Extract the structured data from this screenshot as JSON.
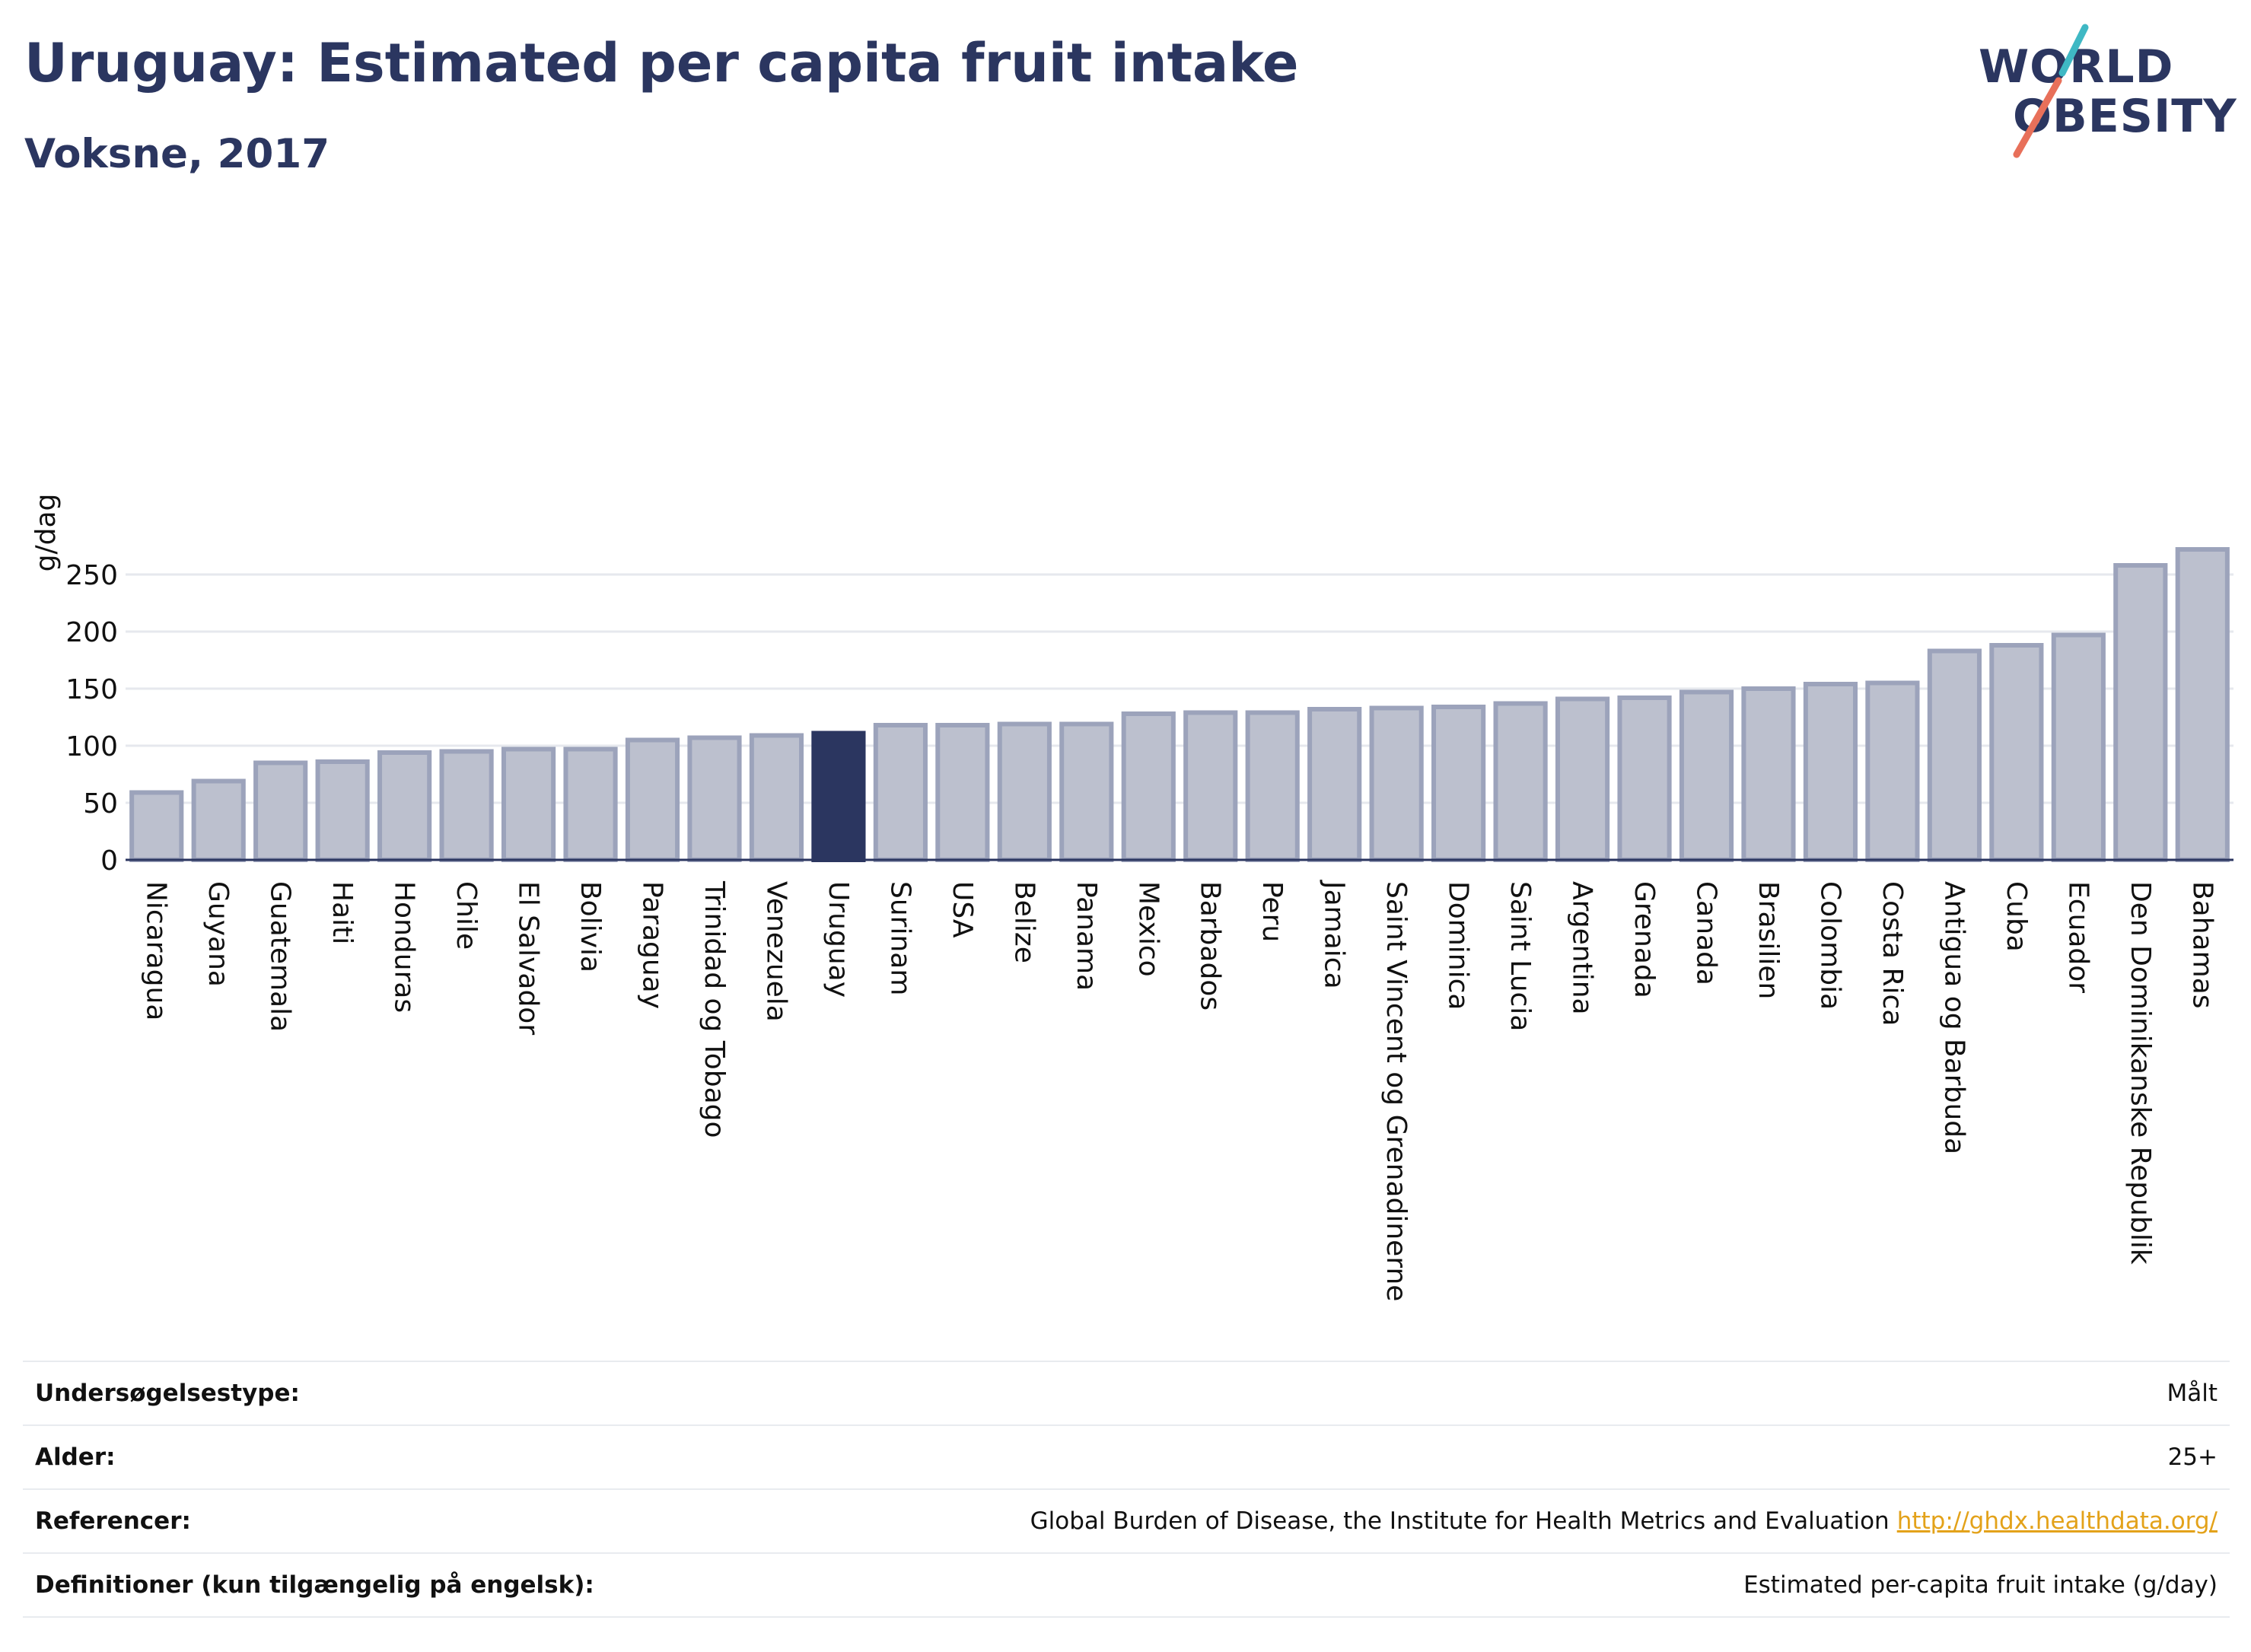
{
  "header": {
    "title": "Uruguay: Estimated per capita fruit intake",
    "subtitle": "Voksne, 2017"
  },
  "logo": {
    "line1": "WORLD",
    "line2": "OBESITY",
    "slash_colors": [
      "#3fb8c4",
      "#e8705a"
    ]
  },
  "colors": {
    "bar_fill": "#bcc0ce",
    "bar_stroke": "#9ca3bb",
    "highlight": "#2b3660",
    "grid": "#e6e8ee",
    "axis": "#2b3660",
    "link": "#e3a21a"
  },
  "chart_data": {
    "type": "bar",
    "title": "",
    "xlabel": "",
    "ylabel": "g/dag",
    "ylim": [
      0,
      275
    ],
    "yticks": [
      0,
      50,
      100,
      150,
      200,
      250
    ],
    "highlight": "Uruguay",
    "categories": [
      "Nicaragua",
      "Guyana",
      "Guatemala",
      "Haiti",
      "Honduras",
      "Chile",
      "El Salvador",
      "Bolivia",
      "Paraguay",
      "Trinidad og Tobago",
      "Venezuela",
      "Uruguay",
      "Surinam",
      "USA",
      "Belize",
      "Panama",
      "Mexico",
      "Barbados",
      "Peru",
      "Jamaica",
      "Saint Vincent og Grenadinerne",
      "Dominica",
      "Saint Lucia",
      "Argentina",
      "Grenada",
      "Canada",
      "Brasilien",
      "Colombia",
      "Costa Rica",
      "Antigua og Barbuda",
      "Cuba",
      "Ecuador",
      "Den Dominikanske Republik",
      "Bahamas"
    ],
    "values": [
      59,
      69,
      85,
      86,
      94,
      95,
      97,
      97,
      105,
      107,
      109,
      111,
      118,
      118,
      119,
      119,
      128,
      129,
      129,
      132,
      133,
      134,
      137,
      141,
      142,
      147,
      150,
      154,
      155,
      183,
      188,
      197,
      258,
      272
    ],
    "grid": true
  },
  "info": [
    {
      "key": "Undersøgelsestype:",
      "value": "Målt"
    },
    {
      "key": "Alder:",
      "value": "25+"
    },
    {
      "key": "Referencer:",
      "value": "Global Burden of Disease, the Institute for Health Metrics and Evaluation",
      "link": "http://ghdx.healthdata.org/"
    },
    {
      "key": "Definitioner (kun tilgængelig på engelsk):",
      "value": "Estimated per-capita fruit intake (g/day)"
    }
  ]
}
